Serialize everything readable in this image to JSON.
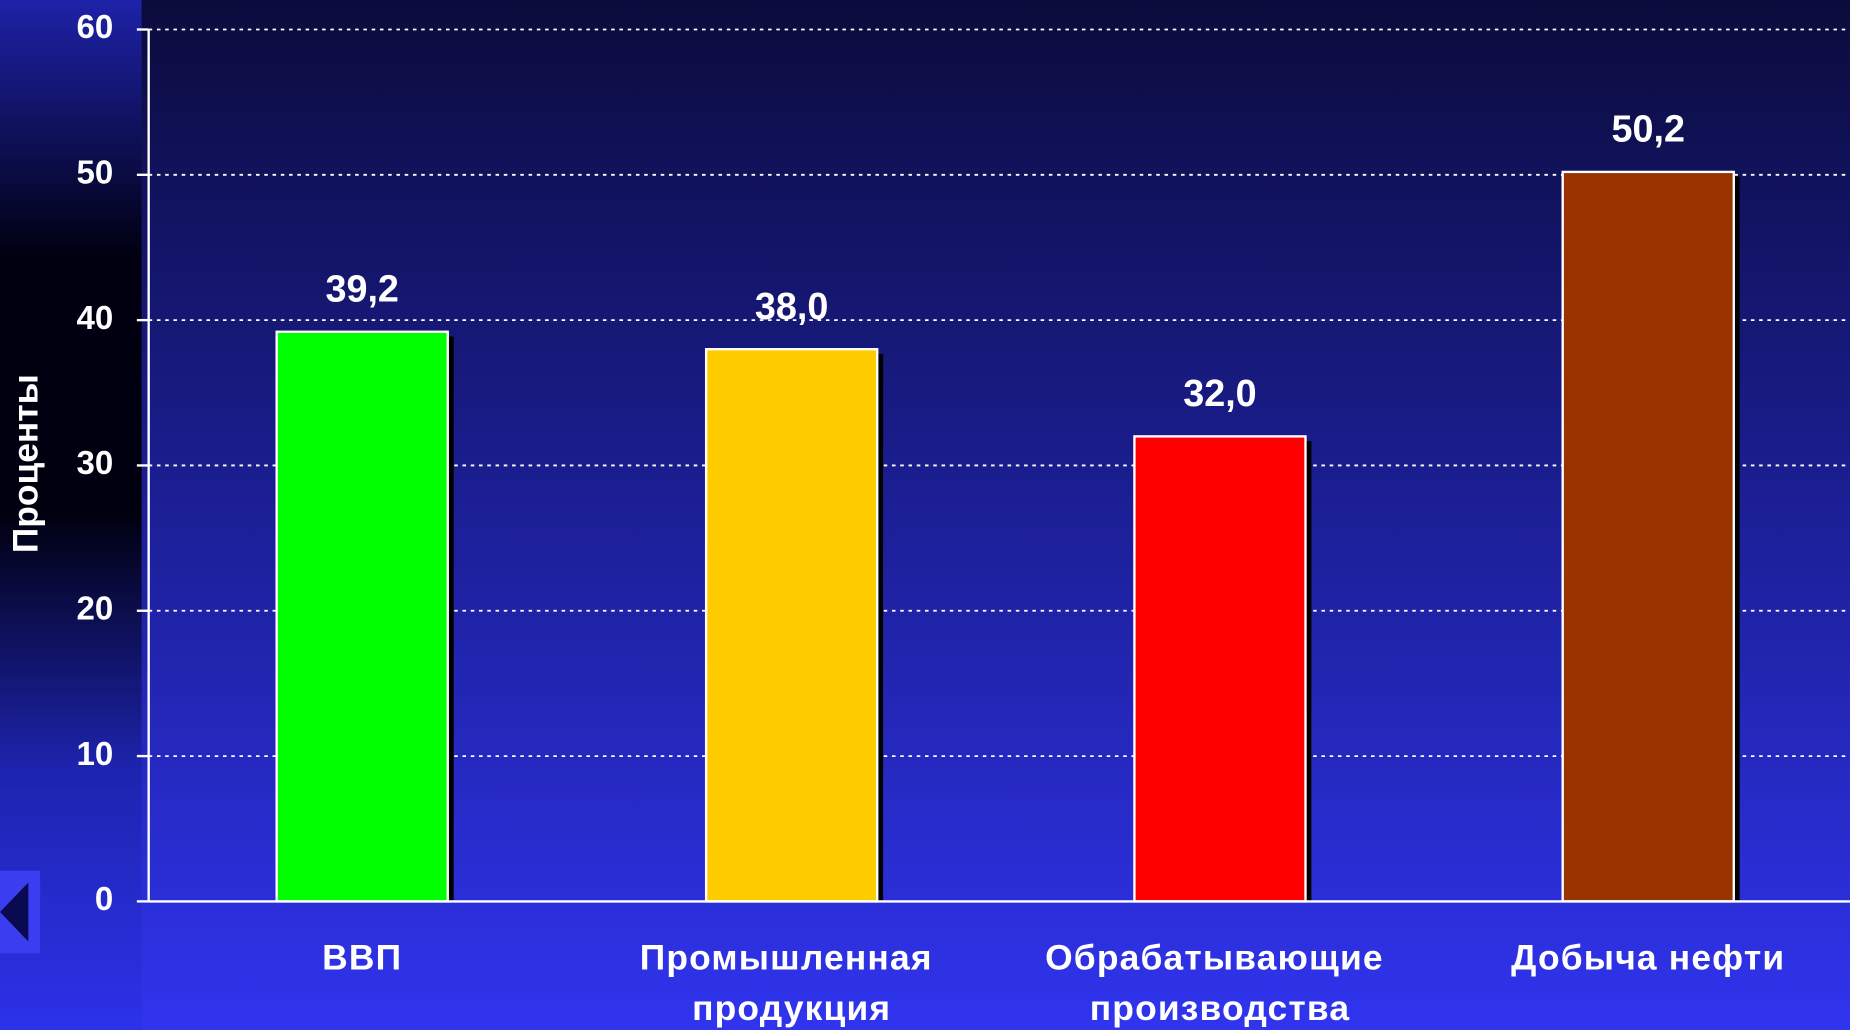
{
  "chart_data": {
    "type": "bar",
    "y_label": "Проценты",
    "categories": [
      "ВВП",
      "Промышленная продукция",
      "Обрабатывающие производства",
      "Добыча нефти"
    ],
    "values": [
      39.2,
      38.0,
      32.0,
      50.2
    ],
    "value_labels": [
      "39,2",
      "38,0",
      "32,0",
      "50,2"
    ],
    "colors": [
      "#00ff00",
      "#ffcc00",
      "#ff0000",
      "#993300"
    ],
    "ylim": [
      0,
      60
    ],
    "yticks": [
      0,
      10,
      20,
      30,
      40,
      50,
      60
    ],
    "grid": true
  }
}
